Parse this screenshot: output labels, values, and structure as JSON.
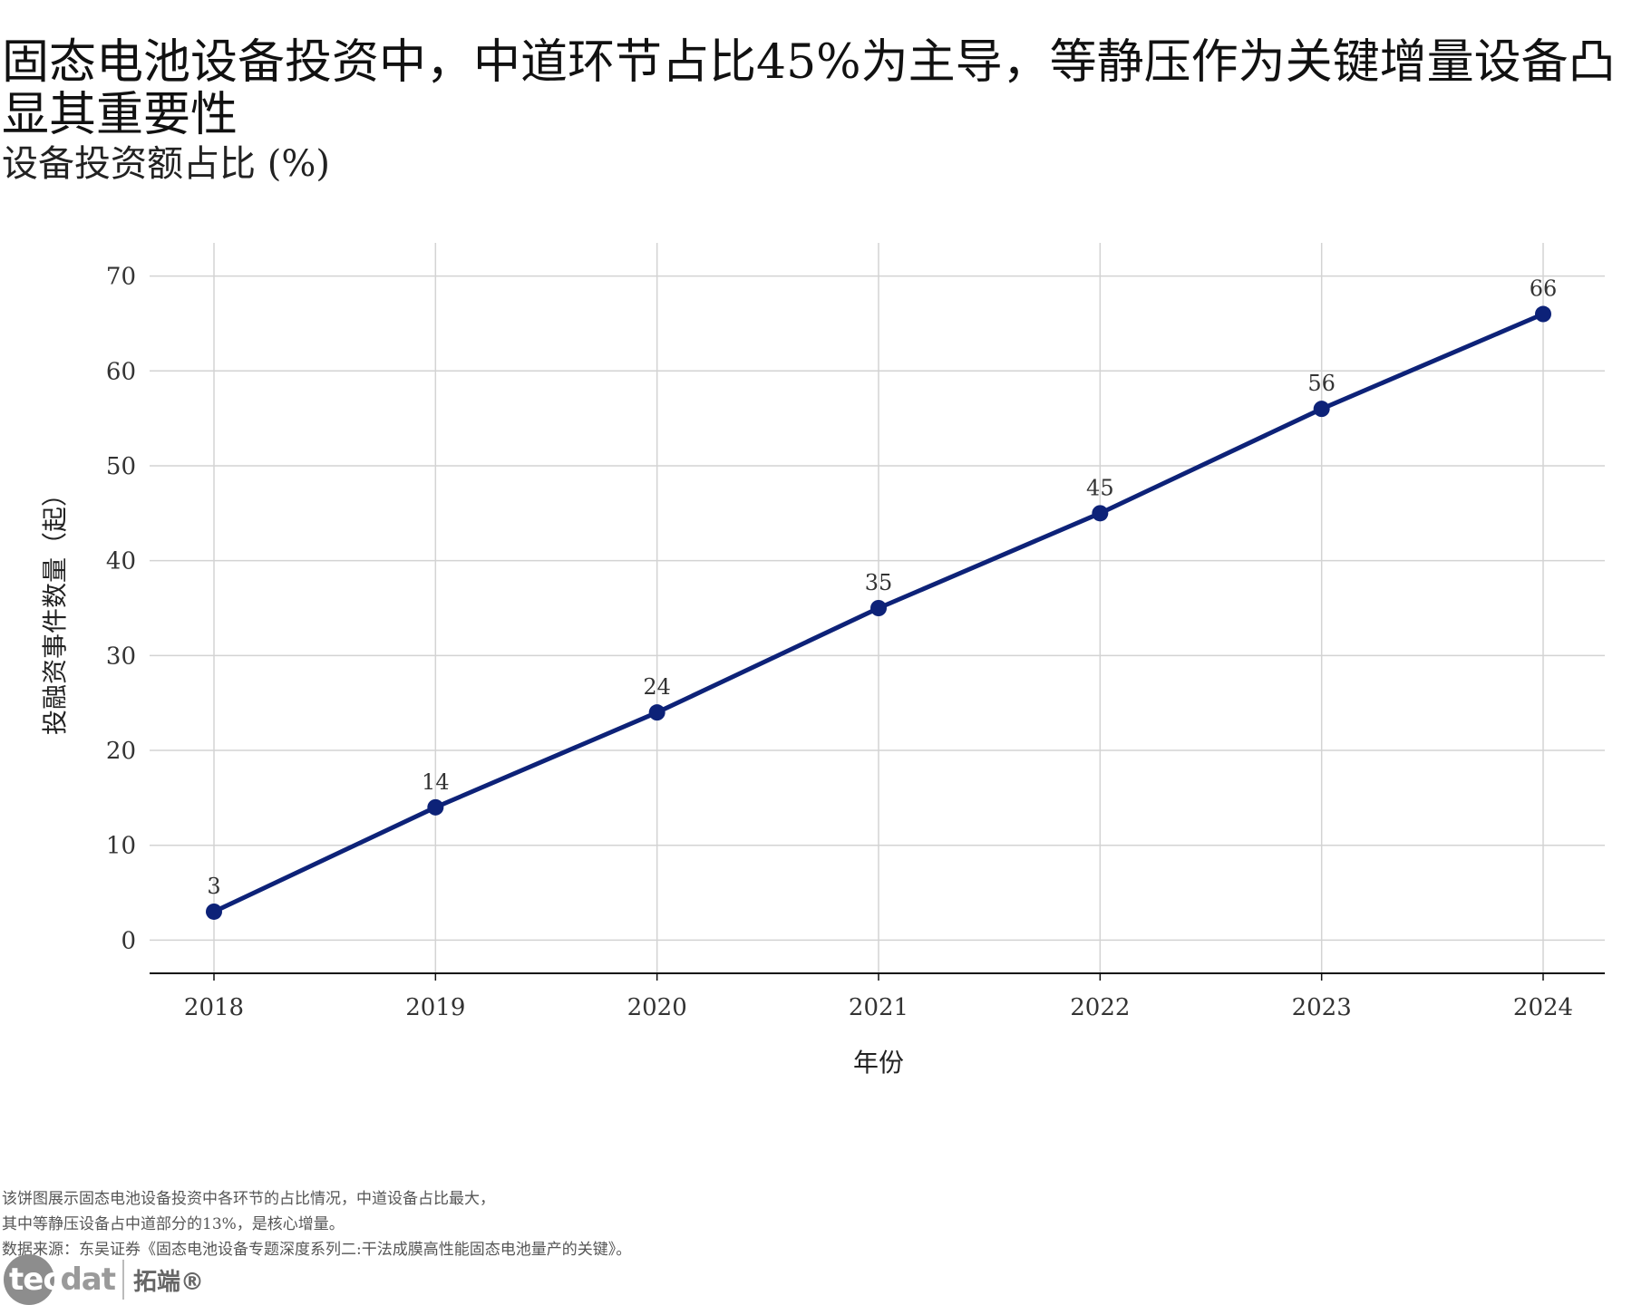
{
  "title": "固态电池设备投资中，中道环节占比45%为主导，等静压作为关键增量设备凸显其重要性",
  "subtitle": "设备投资额占比 (%)",
  "chart_data": {
    "type": "line",
    "x": [
      "2018",
      "2019",
      "2020",
      "2021",
      "2022",
      "2023",
      "2024"
    ],
    "series": [
      {
        "values": [
          3,
          14,
          24,
          35,
          45,
          56,
          66
        ],
        "color": "#0d2278"
      }
    ],
    "data_labels": [
      "3",
      "14",
      "24",
      "35",
      "45",
      "56",
      "66"
    ],
    "xlabel": "年份",
    "ylabel": "投融资事件数量（起）",
    "yticks": [
      0,
      10,
      20,
      30,
      40,
      50,
      60,
      70
    ],
    "ylim": [
      -3.5,
      73.5
    ],
    "grid": true
  },
  "footnotes": [
    "该饼图展示固态电池设备投资中各环节的占比情况，中道设备占比最大，",
    "其中等静压设备占中道部分的13%，是核心增量。",
    "数据来源：东吴证券《固态电池设备专题深度系列二:干法成膜高性能固态电池量产的关键》。"
  ],
  "logo": {
    "brand_prefix": "tec",
    "brand_suffix": "dat",
    "brand_cn": "拓端®"
  }
}
